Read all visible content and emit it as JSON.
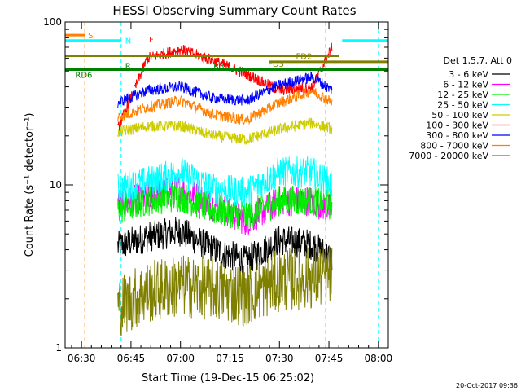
{
  "chart_data": {
    "type": "line",
    "title": "HESSI Observing Summary Count Rates",
    "xlabel": "Start Time (19-Dec-15 06:25:02)",
    "ylabel": "Count Rate (s⁻¹ detector⁻¹)",
    "yscale": "log",
    "ylim": [
      1,
      100
    ],
    "xlim": [
      "06:25:02",
      "08:03:00"
    ],
    "x_tick_labels": [
      "06:30",
      "06:45",
      "07:00",
      "07:15",
      "07:30",
      "07:45",
      "08:00"
    ],
    "y_tick_labels": [
      "1",
      "10",
      "100"
    ],
    "timestamp": "20-Oct-2017 09:36",
    "legend": {
      "placement": "right",
      "title": "Det 1,5,7, Att 0",
      "entries": [
        {
          "label": "3 - 6 keV",
          "color": "#000000"
        },
        {
          "label": "6 - 12 keV",
          "color": "#ff00ff"
        },
        {
          "label": "12 - 25 keV",
          "color": "#00ee00"
        },
        {
          "label": "25 - 50 keV",
          "color": "#00ffff"
        },
        {
          "label": "50 - 100 keV",
          "color": "#cccc00"
        },
        {
          "label": "100 - 300 keV",
          "color": "#ff0000"
        },
        {
          "label": "300 - 800 keV",
          "color": "#0000ff"
        },
        {
          "label": "800 - 7000 keV",
          "color": "#ff7f00"
        },
        {
          "label": "7000 - 20000 keV",
          "color": "#808000"
        }
      ]
    },
    "annotations": [
      {
        "label": "S",
        "color": "#ff7f00",
        "time": "06:31",
        "kind": "saa-start"
      },
      {
        "label": "N",
        "color": "#00ffff",
        "time": "06:42",
        "kind": "night"
      },
      {
        "label": "F",
        "color": "#ff0000",
        "time": "06:50",
        "kind": "flare"
      },
      {
        "label": "FD2",
        "color": "#808000",
        "time": "07:40",
        "kind": "fd"
      },
      {
        "label": "FD3",
        "color": "#808000",
        "time": "07:27",
        "kind": "fd"
      },
      {
        "label": "RD6",
        "color": "#008000",
        "time": "06:35",
        "kind": "rd"
      },
      {
        "label": "R",
        "color": "#008000",
        "time": "06:43",
        "kind": "rd"
      },
      {
        "label": "R3",
        "color": "#008000",
        "time": "07:10",
        "kind": "rd"
      }
    ],
    "series": [
      {
        "name": "3 - 6 keV",
        "color": "#000000",
        "x": [
          "06:41",
          "06:50",
          "07:00",
          "07:10",
          "07:20",
          "07:30",
          "07:40",
          "07:46"
        ],
        "values": [
          4.2,
          4.8,
          5.2,
          4.0,
          3.4,
          4.6,
          4.3,
          3.5
        ]
      },
      {
        "name": "6 - 12 keV",
        "color": "#ff00ff",
        "x": [
          "06:41",
          "06:50",
          "07:00",
          "07:10",
          "07:20",
          "07:30",
          "07:40",
          "07:46"
        ],
        "values": [
          7.5,
          8.5,
          9.5,
          7.5,
          6.0,
          8.0,
          8.0,
          7.0
        ]
      },
      {
        "name": "12 - 25 keV",
        "color": "#00ee00",
        "x": [
          "06:41",
          "06:50",
          "07:00",
          "07:10",
          "07:20",
          "07:30",
          "07:40",
          "07:46"
        ],
        "values": [
          7.0,
          8.0,
          8.5,
          7.0,
          6.5,
          8.0,
          8.0,
          7.5
        ]
      },
      {
        "name": "25 - 50 keV",
        "color": "#00ffff",
        "x": [
          "06:41",
          "06:50",
          "07:00",
          "07:10",
          "07:20",
          "07:30",
          "07:40",
          "07:46"
        ],
        "values": [
          9.5,
          10.5,
          12.0,
          9.5,
          9.0,
          12.0,
          12.0,
          10.0
        ]
      },
      {
        "name": "50 - 100 keV",
        "color": "#cccc00",
        "x": [
          "06:41",
          "06:50",
          "07:00",
          "07:10",
          "07:20",
          "07:30",
          "07:40",
          "07:46"
        ],
        "values": [
          21,
          23,
          23,
          20,
          19,
          22,
          24,
          22
        ]
      },
      {
        "name": "100 - 300 keV",
        "color": "#ff0000",
        "x": [
          "06:41",
          "06:50",
          "07:00",
          "07:10",
          "07:20",
          "07:30",
          "07:40",
          "07:46"
        ],
        "values": [
          22,
          60,
          68,
          58,
          48,
          38,
          40,
          70
        ]
      },
      {
        "name": "300 - 800 keV",
        "color": "#0000ff",
        "x": [
          "06:41",
          "06:50",
          "07:00",
          "07:10",
          "07:20",
          "07:30",
          "07:40",
          "07:46"
        ],
        "values": [
          32,
          38,
          40,
          34,
          33,
          41,
          46,
          38
        ]
      },
      {
        "name": "800 - 7000 keV",
        "color": "#ff7f00",
        "x": [
          "06:41",
          "06:50",
          "07:00",
          "07:10",
          "07:20",
          "07:30",
          "07:40",
          "07:46"
        ],
        "values": [
          26,
          30,
          33,
          27,
          25,
          32,
          38,
          32
        ]
      },
      {
        "name": "7000 - 20000 keV",
        "color": "#808000",
        "x": [
          "06:41",
          "06:50",
          "07:00",
          "07:10",
          "07:20",
          "07:30",
          "07:40",
          "07:46"
        ],
        "values": [
          1.8,
          2.2,
          2.4,
          2.3,
          2.1,
          2.6,
          2.7,
          2.8
        ]
      }
    ],
    "horizontal_lines": [
      {
        "label": "FD2",
        "color": "#808000",
        "y": 62,
        "x_start": "06:25",
        "x_end": "07:48"
      },
      {
        "label": "FD3",
        "color": "#808000",
        "y": 57,
        "x_start": "07:27",
        "x_end": "08:03"
      },
      {
        "label": "RD6",
        "color": "#008000",
        "y": 51,
        "x_start": "06:25",
        "x_end": "08:03"
      },
      {
        "label": "S",
        "color": "#ff7f00",
        "y": 83,
        "x_start": "06:25",
        "x_end": "06:31"
      },
      {
        "label": "N",
        "color": "#00ffff",
        "y": 77,
        "x_start": "06:25",
        "x_end": "06:42"
      },
      {
        "label": "N",
        "color": "#00ffff",
        "y": 77,
        "x_start": "07:49",
        "x_end": "08:03"
      }
    ],
    "vertical_lines": [
      {
        "color": "#ff7f00",
        "x": "06:31"
      },
      {
        "color": "#00ffff",
        "x": "06:42"
      },
      {
        "color": "#00ffff",
        "x": "07:44"
      },
      {
        "color": "#00ffff",
        "x": "08:00"
      }
    ]
  }
}
